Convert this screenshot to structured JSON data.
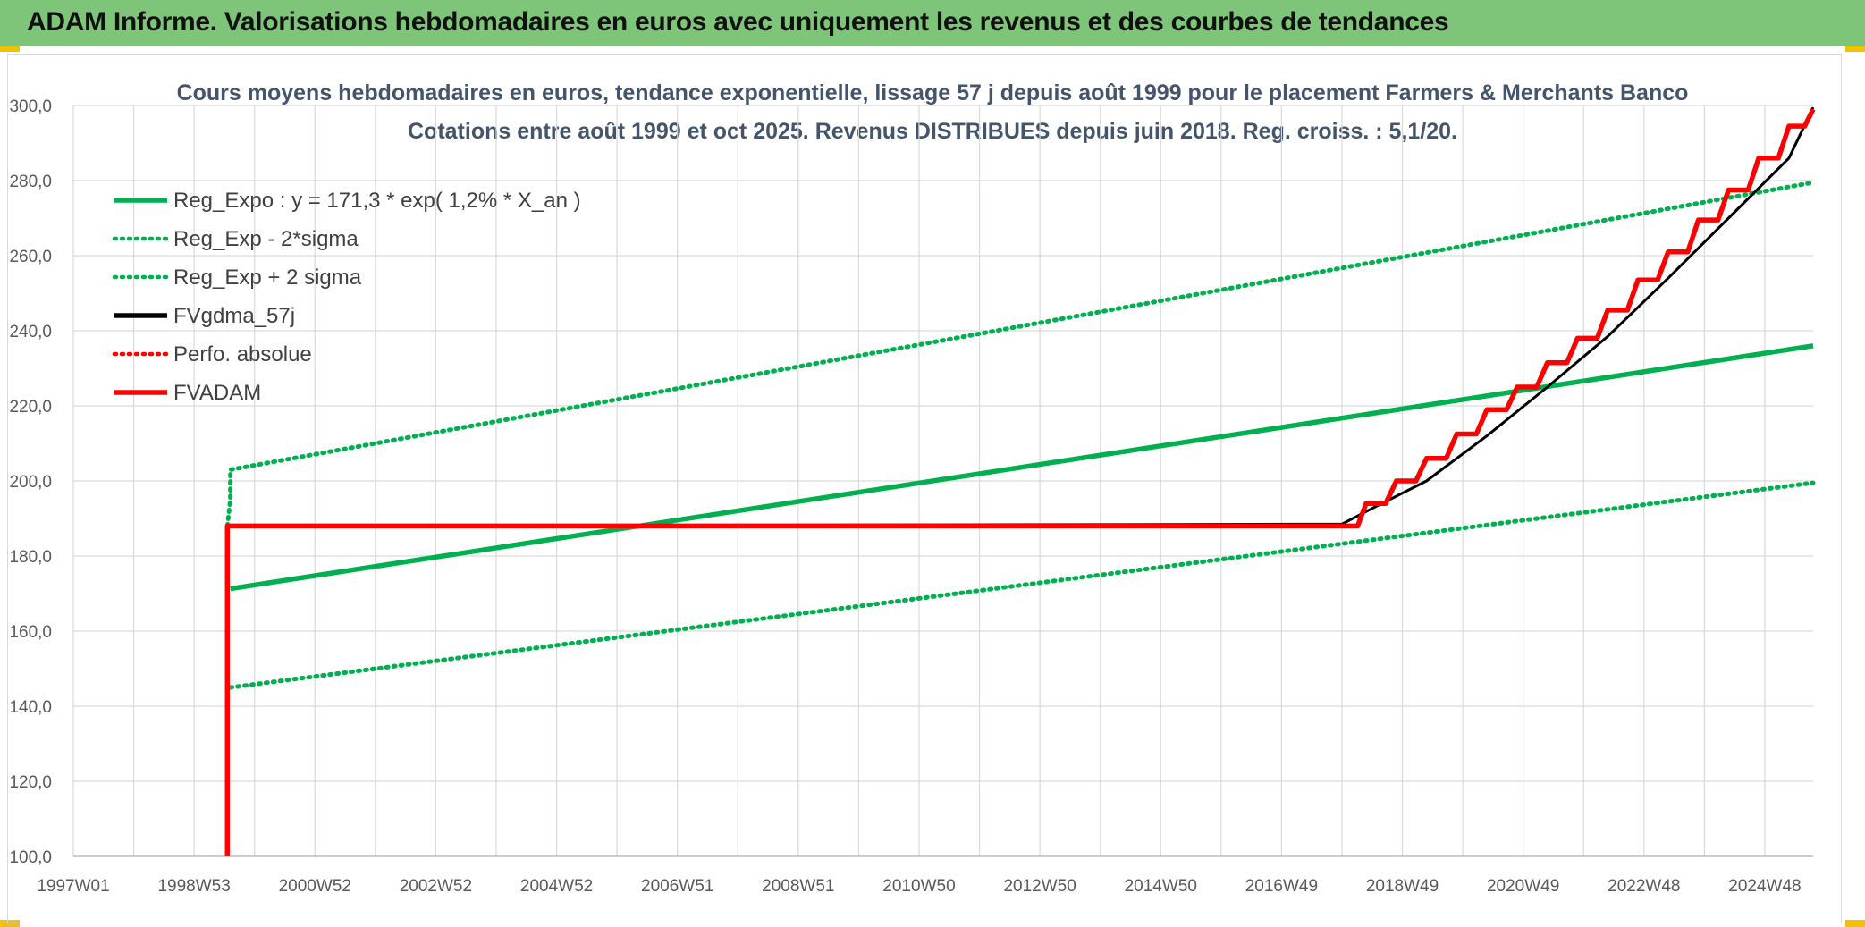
{
  "header": {
    "title": "ADAM Informe. Valorisations hebdomadaires en euros avec uniquement les revenus et des courbes de tendances"
  },
  "chart_data": {
    "type": "line",
    "title": "Cours moyens hebdomadaires en euros, tendance exponentielle, lissage 57 j depuis août 1999 pour le placement Farmers & Merchants Banco",
    "subtitle": "Cotations entre août 1999 et oct 2025. Revenus DISTRIBUES depuis juin 2018. Reg. croiss. : 5,1/20.",
    "xlabel": "",
    "ylabel": "",
    "x_range": [
      1997.0,
      2025.8
    ],
    "ylim": [
      100,
      300
    ],
    "y_ticks": [
      "100,0",
      "120,0",
      "140,0",
      "160,0",
      "180,0",
      "200,0",
      "220,0",
      "240,0",
      "260,0",
      "280,0",
      "300,0"
    ],
    "x_ticks": [
      {
        "label": "1997W01",
        "x": 1997.0
      },
      {
        "label": "1998W53",
        "x": 1999.0
      },
      {
        "label": "2000W52",
        "x": 2001.0
      },
      {
        "label": "2002W52",
        "x": 2003.0
      },
      {
        "label": "2004W52",
        "x": 2005.0
      },
      {
        "label": "2006W51",
        "x": 2007.0
      },
      {
        "label": "2008W51",
        "x": 2009.0
      },
      {
        "label": "2010W50",
        "x": 2011.0
      },
      {
        "label": "2012W50",
        "x": 2013.0
      },
      {
        "label": "2014W50",
        "x": 2015.0
      },
      {
        "label": "2016W49",
        "x": 2017.0
      },
      {
        "label": "2018W49",
        "x": 2019.0
      },
      {
        "label": "2020W49",
        "x": 2021.0
      },
      {
        "label": "2022W48",
        "x": 2023.0
      },
      {
        "label": "2024W48",
        "x": 2025.0
      }
    ],
    "grid": true,
    "legend_position": "top-left",
    "series": [
      {
        "name": "Reg_Expo : y = 171,3 * exp( 1,2% *  X_an )",
        "color": "#00b050",
        "style": "solid",
        "x": [
          1999.6,
          2025.8
        ],
        "y": [
          171.3,
          236.0
        ]
      },
      {
        "name": "Reg_Exp - 2*sigma",
        "color": "#00b050",
        "style": "dotted",
        "x": [
          1999.6,
          2025.8
        ],
        "y": [
          145.0,
          199.5
        ]
      },
      {
        "name": "Reg_Exp + 2 sigma",
        "color": "#00b050",
        "style": "dotted",
        "x": [
          1999.55,
          1999.6,
          1999.6,
          2025.8
        ],
        "y": [
          188.0,
          195.0,
          203.0,
          279.5
        ]
      },
      {
        "name": "FVgdma_57j",
        "color": "#000000",
        "style": "solid",
        "x": [
          1999.6,
          2018.0,
          2018.6,
          2019.4,
          2020.4,
          2021.4,
          2022.4,
          2023.4,
          2024.4,
          2025.4,
          2025.8
        ],
        "y": [
          188.0,
          188.5,
          193.5,
          200.0,
          212.0,
          225.0,
          238.5,
          254.0,
          270.0,
          286.0,
          299.5
        ]
      },
      {
        "name": "Perfo. absolue",
        "color": "#ff0000",
        "style": "dotted",
        "x": [],
        "y": []
      },
      {
        "name": "FVADAM",
        "color": "#ff0000",
        "style": "step",
        "x": [
          1999.55,
          1999.55,
          1999.6,
          2018.0,
          2018.4,
          2018.9,
          2019.4,
          2019.9,
          2020.4,
          2020.9,
          2021.4,
          2021.9,
          2022.4,
          2022.9,
          2023.4,
          2023.9,
          2024.4,
          2024.9,
          2025.4,
          2025.8
        ],
        "y": [
          100.0,
          188.0,
          188.0,
          188.0,
          194.0,
          200.0,
          206.0,
          212.5,
          219.0,
          225.0,
          231.5,
          238.0,
          245.5,
          253.5,
          261.0,
          269.5,
          277.5,
          286.0,
          294.5,
          299.0
        ]
      }
    ]
  }
}
